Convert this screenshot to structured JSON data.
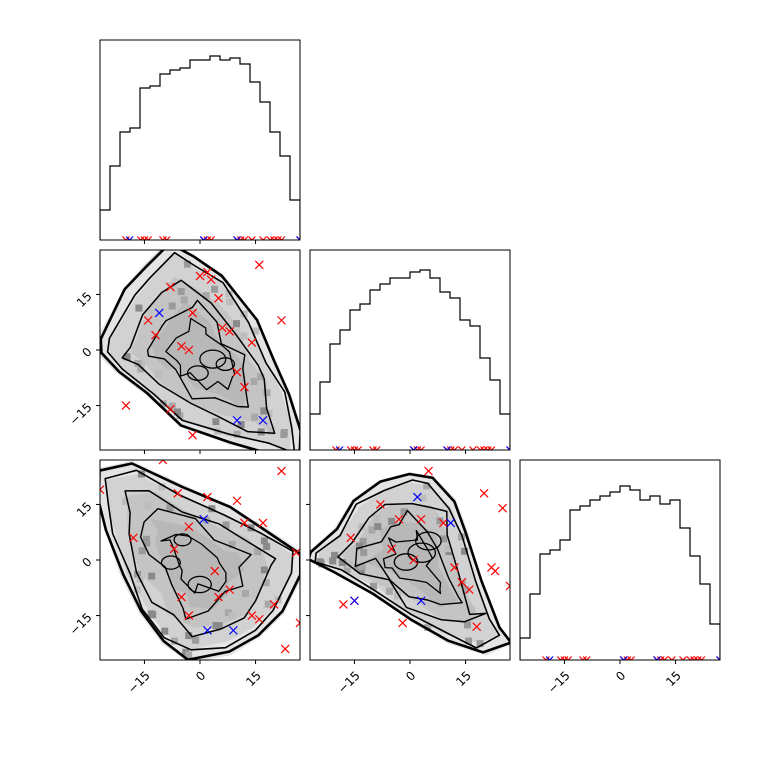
{
  "chart_data": {
    "type": "corner",
    "variables": 3,
    "range": [
      -27,
      27
    ],
    "ticks": [
      -15,
      0,
      15
    ],
    "tick_labels": [
      "−15",
      "0",
      "15"
    ],
    "histograms": [
      {
        "panel": "0-0",
        "bin_start": -27,
        "bin_width": 2.7,
        "counts": [
          0.15,
          0.37,
          0.54,
          0.56,
          0.76,
          0.77,
          0.83,
          0.85,
          0.86,
          0.9,
          0.9,
          0.92,
          0.9,
          0.91,
          0.88,
          0.79,
          0.69,
          0.54,
          0.42,
          0.2
        ]
      },
      {
        "panel": "1-1",
        "bin_start": -27,
        "bin_width": 2.7,
        "counts": [
          0.18,
          0.34,
          0.53,
          0.6,
          0.7,
          0.73,
          0.8,
          0.83,
          0.86,
          0.86,
          0.89,
          0.9,
          0.86,
          0.79,
          0.76,
          0.65,
          0.62,
          0.46,
          0.35,
          0.18
        ]
      },
      {
        "panel": "2-2",
        "bin_start": -27,
        "bin_width": 2.7,
        "counts": [
          0.11,
          0.33,
          0.53,
          0.55,
          0.6,
          0.75,
          0.77,
          0.8,
          0.82,
          0.84,
          0.87,
          0.85,
          0.8,
          0.82,
          0.78,
          0.8,
          0.66,
          0.52,
          0.38,
          0.18
        ]
      }
    ],
    "density_bounds": {
      "1-0": [
        [
          -27,
          3
        ],
        [
          -20,
          16
        ],
        [
          -15,
          22
        ],
        [
          -8,
          29
        ],
        [
          -2,
          25
        ],
        [
          6,
          20
        ],
        [
          15,
          8
        ],
        [
          20,
          -3
        ],
        [
          24,
          -12
        ],
        [
          27,
          -22
        ],
        [
          27,
          -30
        ],
        [
          20,
          -28
        ],
        [
          8,
          -25
        ],
        [
          -5,
          -20
        ],
        [
          -14,
          -12
        ],
        [
          -22,
          -6
        ],
        [
          -27,
          -1
        ]
      ],
      "2-0": [
        [
          -27,
          24
        ],
        [
          -18,
          26
        ],
        [
          -5,
          20
        ],
        [
          8,
          14
        ],
        [
          18,
          8
        ],
        [
          27,
          2
        ],
        [
          27,
          -4
        ],
        [
          22,
          -14
        ],
        [
          16,
          -20
        ],
        [
          8,
          -25
        ],
        [
          -3,
          -27
        ],
        [
          -10,
          -22
        ],
        [
          -16,
          -14
        ],
        [
          -21,
          -4
        ],
        [
          -25,
          8
        ],
        [
          -27,
          16
        ]
      ],
      "2-1": [
        [
          -27,
          2
        ],
        [
          -20,
          8
        ],
        [
          -15,
          16
        ],
        [
          -8,
          21
        ],
        [
          0,
          23
        ],
        [
          6,
          22
        ],
        [
          12,
          16
        ],
        [
          15,
          8
        ],
        [
          19,
          -6
        ],
        [
          24,
          -18
        ],
        [
          27,
          -22
        ],
        [
          20,
          -25
        ],
        [
          10,
          -22
        ],
        [
          0,
          -16
        ],
        [
          -10,
          -9
        ],
        [
          -20,
          -3
        ],
        [
          -27,
          0
        ]
      ]
    },
    "markers": {
      "red": {
        "1-0": [
          [
            -20,
            -15
          ],
          [
            -14,
            8
          ],
          [
            -8,
            17
          ],
          [
            -8,
            -16
          ],
          [
            -5,
            1
          ],
          [
            -3,
            0
          ],
          [
            -2,
            10
          ],
          [
            -2,
            -23
          ],
          [
            0,
            20
          ],
          [
            2,
            21
          ],
          [
            3,
            19
          ],
          [
            5,
            14
          ],
          [
            6,
            6
          ],
          [
            8,
            5
          ],
          [
            10,
            -6
          ],
          [
            12,
            -10
          ],
          [
            14,
            2
          ],
          [
            16,
            23
          ],
          [
            22,
            8
          ],
          [
            -12,
            4
          ]
        ],
        "2-0": [
          [
            -27,
            19
          ],
          [
            -18,
            6
          ],
          [
            -10,
            27
          ],
          [
            -7,
            3
          ],
          [
            -6,
            18
          ],
          [
            -5,
            -10
          ],
          [
            -3,
            -15
          ],
          [
            2,
            17
          ],
          [
            4,
            -3
          ],
          [
            5,
            -10
          ],
          [
            8,
            -8
          ],
          [
            10,
            16
          ],
          [
            12,
            10
          ],
          [
            14,
            -15
          ],
          [
            16,
            -16
          ],
          [
            17,
            10
          ],
          [
            20,
            -12
          ],
          [
            22,
            24
          ],
          [
            26,
            2
          ],
          [
            27,
            -17
          ],
          [
            23,
            -24
          ],
          [
            -3,
            9
          ]
        ],
        "2-1": [
          [
            -18,
            -12
          ],
          [
            -16,
            6
          ],
          [
            -15,
            -11
          ],
          [
            -8,
            15
          ],
          [
            -5,
            3
          ],
          [
            -3,
            11
          ],
          [
            1,
            0
          ],
          [
            3,
            11
          ],
          [
            5,
            24
          ],
          [
            9,
            10
          ],
          [
            12,
            -2
          ],
          [
            14,
            -6
          ],
          [
            16,
            -8
          ],
          [
            18,
            -18
          ],
          [
            20,
            18
          ],
          [
            22,
            -2
          ],
          [
            23,
            -3
          ],
          [
            25,
            14
          ],
          [
            27,
            -7
          ],
          [
            -2,
            -17
          ]
        ],
        "diag": [
          -20,
          -16,
          -15,
          -14,
          -10,
          -9,
          1,
          2,
          3,
          10,
          11,
          12,
          14,
          17,
          19,
          20,
          21,
          22,
          27
        ]
      },
      "blue": {
        "1-0": [
          [
            -12,
            28
          ],
          [
            -11,
            10
          ],
          [
            10,
            -19
          ],
          [
            17,
            -19
          ]
        ],
        "2-0": [
          [
            -11,
            28
          ],
          [
            1,
            11
          ],
          [
            2,
            -19
          ],
          [
            9,
            -19
          ]
        ],
        "2-1": [
          [
            -15,
            -11
          ],
          [
            2,
            17
          ],
          [
            3,
            -11
          ],
          [
            11,
            10
          ]
        ],
        "diag": [
          -19,
          1,
          10,
          27
        ]
      }
    }
  }
}
